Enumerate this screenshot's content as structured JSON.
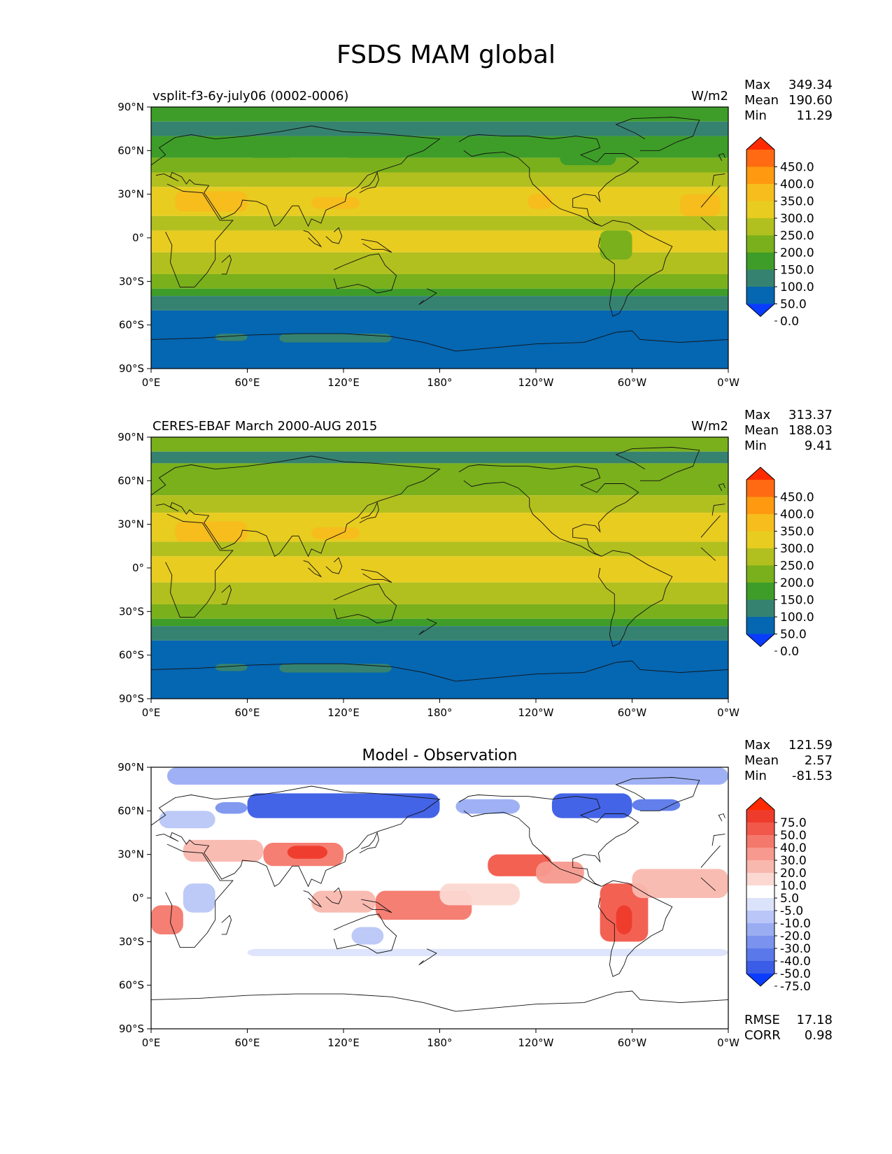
{
  "figure": {
    "title": "FSDS MAM global"
  },
  "axes": {
    "lat_labels": [
      "90°N",
      "60°N",
      "30°N",
      "0°",
      "30°S",
      "60°S",
      "90°S"
    ],
    "lon_labels": [
      "0°E",
      "60°E",
      "120°E",
      "180°",
      "120°W",
      "60°W",
      "0°W"
    ]
  },
  "panels": [
    {
      "title_left": "vsplit-f3-6y-july06 (0002-0006)",
      "title_center": "",
      "units": "W/m2",
      "stats": [
        {
          "label": "Max",
          "value": "349.34"
        },
        {
          "label": "Mean",
          "value": "190.60"
        },
        {
          "label": "Min",
          "value": "11.29"
        }
      ],
      "colorbar": {
        "levels": [
          "450.0",
          "400.0",
          "350.0",
          "300.0",
          "250.0",
          "200.0",
          "150.0",
          "100.0",
          "50.0",
          "0.0"
        ],
        "colors": [
          "#ff2a00",
          "#ff6a12",
          "#ff9a10",
          "#f6bd1d",
          "#e8cc20",
          "#b2c01f",
          "#79b01c",
          "#3e9d28",
          "#368270",
          "#0566b1",
          "#0a3cff"
        ]
      }
    },
    {
      "title_left": "CERES-EBAF March 2000-AUG 2015",
      "title_center": "",
      "units": "W/m2",
      "stats": [
        {
          "label": "Max",
          "value": "313.37"
        },
        {
          "label": "Mean",
          "value": "188.03"
        },
        {
          "label": "Min",
          "value": "9.41"
        }
      ],
      "colorbar": {
        "levels": [
          "450.0",
          "400.0",
          "350.0",
          "300.0",
          "250.0",
          "200.0",
          "150.0",
          "100.0",
          "50.0",
          "0.0"
        ],
        "colors": [
          "#ff2a00",
          "#ff6a12",
          "#ff9a10",
          "#f6bd1d",
          "#e8cc20",
          "#b2c01f",
          "#79b01c",
          "#3e9d28",
          "#368270",
          "#0566b1",
          "#0a3cff"
        ]
      }
    },
    {
      "title_left": "",
      "title_center": "Model - Observation",
      "units": "",
      "stats": [
        {
          "label": "Max",
          "value": "121.59"
        },
        {
          "label": "Mean",
          "value": "2.57"
        },
        {
          "label": "Min",
          "value": "-81.53"
        }
      ],
      "colorbar": {
        "levels": [
          "75.0",
          "50.0",
          "40.0",
          "30.0",
          "20.0",
          "10.0",
          "5.0",
          "-5.0",
          "-10.0",
          "-20.0",
          "-30.0",
          "-40.0",
          "-50.0",
          "-75.0"
        ],
        "colors": [
          "#ff2a00",
          "#ee3b2b",
          "#f2584a",
          "#f4786c",
          "#f7998e",
          "#f9b8ae",
          "#fcd8d2",
          "#ffffff",
          "#dbe3fb",
          "#b9c6f7",
          "#9aadf3",
          "#7b93ef",
          "#5a78ea",
          "#3a5ce6",
          "#0a3cff"
        ]
      },
      "metrics": [
        {
          "label": "RMSE",
          "value": "17.18"
        },
        {
          "label": "CORR",
          "value": "0.98"
        }
      ]
    }
  ]
}
